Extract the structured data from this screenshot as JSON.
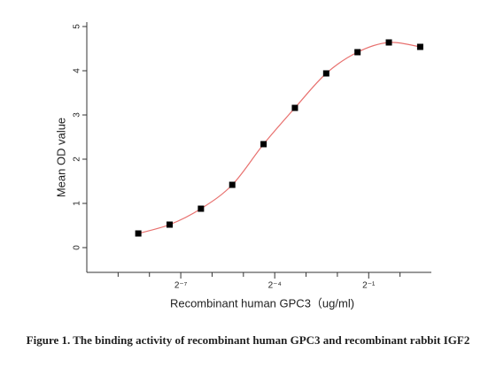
{
  "chart_data": {
    "type": "scatter",
    "xlabel": "Recombinant human  GPC3（ug/ml)",
    "ylabel": "Mean OD value",
    "caption": "Figure 1. The binding activity of recombinant human GPC3 and recombinant rabbit IGF2",
    "xscale": "log2",
    "x": [
      0.0030517578125,
      0.006103515625,
      0.01220703125,
      0.0244140625,
      0.048828125,
      0.09765625,
      0.1953125,
      0.390625,
      0.78125,
      1.5625
    ],
    "series": [
      {
        "values": [
          0.32,
          0.52,
          0.88,
          1.42,
          2.34,
          3.16,
          3.94,
          4.42,
          4.64,
          4.54
        ],
        "color": "#000000",
        "line_color": "#e8716f"
      }
    ],
    "xlim": [
      0.0009765625,
      2
    ],
    "xticks": [
      {
        "value": 0.0078125,
        "label": "2⁻⁷"
      },
      {
        "value": 0.0625,
        "label": "2⁻⁴"
      },
      {
        "value": 0.5,
        "label": "2⁻¹"
      }
    ],
    "xminorticks": [
      0.001953125,
      0.00390625,
      0.015625,
      0.03125,
      0.125,
      0.25,
      1
    ],
    "ylim": [
      -0.56,
      5.1
    ],
    "yticks": [
      0,
      1,
      2,
      3,
      4,
      5
    ]
  }
}
